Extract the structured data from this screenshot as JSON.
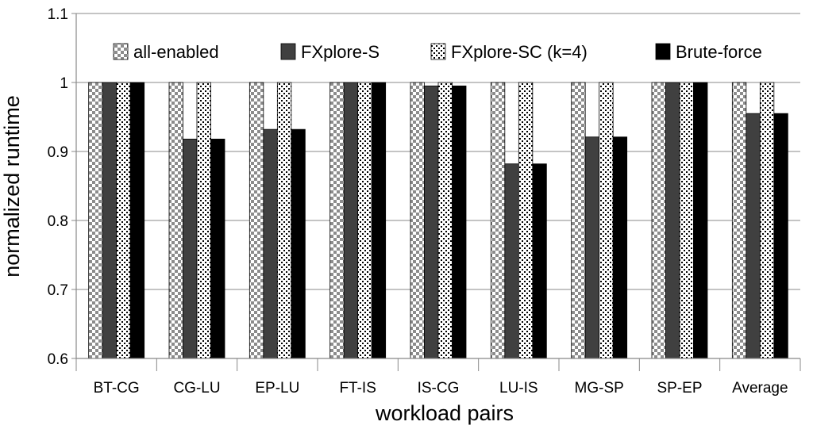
{
  "chart_data": {
    "type": "bar",
    "title": "",
    "xlabel": "workload pairs",
    "ylabel": "normalized runtime",
    "ylim": [
      0.6,
      1.1
    ],
    "yticks": [
      "0.6",
      "0.7",
      "0.8",
      "0.9",
      "1",
      "1.1"
    ],
    "grid": true,
    "legend_position": "top",
    "categories": [
      "BT-CG",
      "CG-LU",
      "EP-LU",
      "FT-IS",
      "IS-CG",
      "LU-IS",
      "MG-SP",
      "SP-EP",
      "Average"
    ],
    "series": [
      {
        "name": "all-enabled",
        "pattern": "checker",
        "values": [
          1,
          1,
          1,
          1,
          1,
          1,
          1,
          1,
          1
        ]
      },
      {
        "name": "FXplore-S",
        "pattern": "dark-gray",
        "color": "#404040",
        "values": [
          1,
          0.918,
          0.932,
          1,
          0.995,
          0.882,
          0.921,
          1,
          0.955
        ]
      },
      {
        "name": "FXplore-SC  (k=4)",
        "pattern": "dots",
        "values": [
          1,
          1,
          1,
          1,
          1,
          1,
          1,
          1,
          1
        ]
      },
      {
        "name": "Brute-force",
        "pattern": "black",
        "color": "#000000",
        "values": [
          1,
          0.918,
          0.932,
          1,
          0.995,
          0.882,
          0.921,
          1,
          0.955
        ]
      }
    ]
  }
}
